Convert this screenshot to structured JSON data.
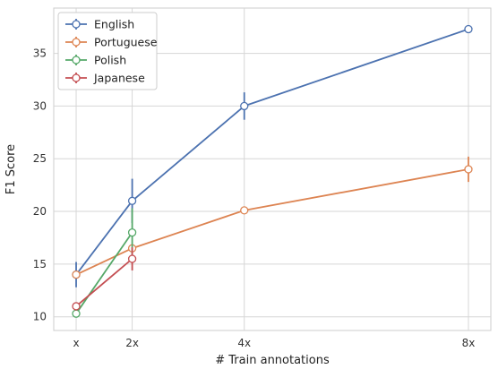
{
  "chart_data": {
    "type": "line",
    "xlabel": "# Train annotations",
    "ylabel": "F1 Score",
    "x_ticks": [
      {
        "value": 1,
        "label": "x"
      },
      {
        "value": 2,
        "label": "2x"
      },
      {
        "value": 4,
        "label": "4x"
      },
      {
        "value": 8,
        "label": "8x"
      }
    ],
    "y_ticks": [
      10,
      15,
      20,
      25,
      30,
      35
    ],
    "xlim": [
      0.6,
      8.4
    ],
    "ylim": [
      8.7,
      39.3
    ],
    "grid": true,
    "legend_position": "top-left",
    "series": [
      {
        "name": "English",
        "color": "#4c72b0",
        "x": [
          1,
          2,
          4,
          8
        ],
        "y": [
          14.0,
          21.0,
          30.0,
          37.3
        ],
        "err": [
          1.2,
          2.1,
          1.3,
          0.0
        ]
      },
      {
        "name": "Portuguese",
        "color": "#dd8452",
        "x": [
          1,
          2,
          4,
          8
        ],
        "y": [
          14.0,
          16.5,
          20.1,
          24.0
        ],
        "err": [
          0.0,
          0.0,
          0.0,
          1.2
        ]
      },
      {
        "name": "Polish",
        "color": "#55a868",
        "x": [
          1,
          2
        ],
        "y": [
          10.3,
          18.0
        ],
        "err": [
          0.0,
          2.3
        ]
      },
      {
        "name": "Japanese",
        "color": "#c44e52",
        "x": [
          1,
          2
        ],
        "y": [
          11.0,
          15.5
        ],
        "err": [
          0.0,
          1.1
        ]
      }
    ]
  }
}
